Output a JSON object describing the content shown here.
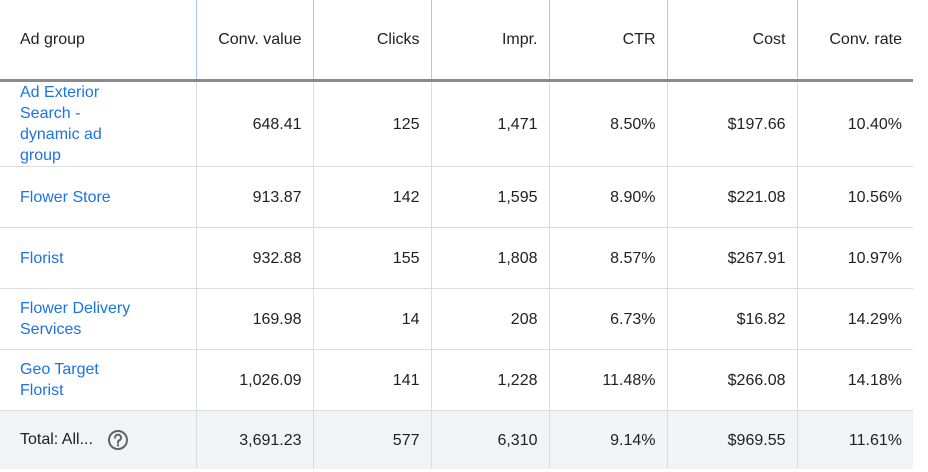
{
  "table": {
    "headers": [
      "Ad group",
      "Conv. value",
      "Clicks",
      "Impr.",
      "CTR",
      "Cost",
      "Conv. rate"
    ],
    "rows": [
      [
        "Ad Exterior Search - dynamic ad group",
        "648.41",
        "125",
        "1,471",
        "8.50%",
        "$197.66",
        "10.40%"
      ],
      [
        "Flower Store",
        "913.87",
        "142",
        "1,595",
        "8.90%",
        "$221.08",
        "10.56%"
      ],
      [
        "Florist",
        "932.88",
        "155",
        "1,808",
        "8.57%",
        "$267.91",
        "10.97%"
      ],
      [
        "Flower Delivery Services",
        "169.98",
        "14",
        "208",
        "6.73%",
        "$16.82",
        "14.29%"
      ],
      [
        "Geo Target Florist",
        "1,026.09",
        "141",
        "1,228",
        "11.48%",
        "$266.08",
        "14.18%"
      ]
    ],
    "total": [
      "Total: All...",
      "3,691.23",
      "577",
      "6,310",
      "9.14%",
      "$969.55",
      "11.61%"
    ]
  }
}
